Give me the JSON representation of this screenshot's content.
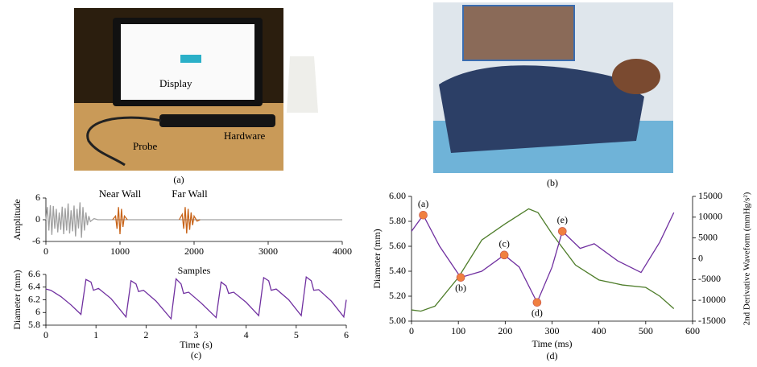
{
  "photos": [
    {
      "labels": [
        "Display",
        "Probe",
        "Hardware"
      ],
      "caption": "(a)"
    },
    {
      "caption": "(b)"
    }
  ],
  "chart_data": [
    {
      "type": "line",
      "xlabel": "Samples",
      "ylabel": "Amplitude",
      "xlim": [
        0,
        4000
      ],
      "xticks": [
        0,
        1000,
        2000,
        3000,
        4000
      ],
      "ylim": [
        -6,
        6
      ],
      "yticks": [
        -6,
        0,
        6
      ],
      "annotations": [
        "Near Wall",
        "Far Wall"
      ],
      "series": [
        {
          "color": "#a0a0a0",
          "x": [
            0,
            20,
            40,
            60,
            80,
            100,
            120,
            140,
            160,
            180,
            200,
            220,
            240,
            260,
            280,
            300,
            320,
            340,
            360,
            380,
            400,
            420,
            440,
            460,
            480,
            500,
            520,
            540,
            560,
            580,
            600,
            650,
            700,
            4000
          ],
          "values": [
            0,
            3.5,
            -3,
            4,
            -4.2,
            3.8,
            -2.5,
            3,
            -3.5,
            2,
            -2.8,
            3.6,
            -4,
            3.2,
            -3,
            4.5,
            -3.8,
            2.6,
            -3.2,
            3.9,
            -4.6,
            3,
            -2.4,
            4.8,
            -5,
            3.5,
            -3,
            2,
            -1.5,
            1,
            -0.5,
            0.3,
            0,
            0
          ]
        },
        {
          "color": "#c8651b",
          "x": [
            900,
            940,
            960,
            980,
            1000,
            1020,
            1040,
            1060,
            1100
          ],
          "values": [
            0,
            1,
            -2.5,
            3.5,
            -4,
            3,
            -2,
            1,
            0
          ]
        },
        {
          "color": "#c8651b",
          "x": [
            1800,
            1840,
            1860,
            1880,
            1900,
            1920,
            1940,
            1960,
            1980,
            2000,
            2040,
            2080
          ],
          "values": [
            0,
            1.5,
            -2.5,
            3.5,
            -3.8,
            3,
            -2.8,
            2,
            -1.5,
            1,
            -0.4,
            0
          ]
        }
      ]
    },
    {
      "type": "line",
      "xlabel": "Time (s)",
      "ylabel": "Diameter (mm)",
      "caption": "(c)",
      "xlim": [
        0,
        6
      ],
      "xticks": [
        0,
        1,
        2,
        3,
        4,
        5,
        6
      ],
      "ylim": [
        5.8,
        6.6
      ],
      "yticks": [
        5.8,
        6,
        6.2,
        6.4,
        6.6
      ],
      "series": [
        {
          "color": "#7030a0",
          "x": [
            0,
            0.1,
            0.3,
            0.5,
            0.7,
            0.8,
            0.9,
            0.95,
            1.05,
            1.3,
            1.6,
            1.7,
            1.8,
            1.85,
            1.95,
            2.2,
            2.5,
            2.6,
            2.7,
            2.75,
            2.85,
            3.1,
            3.4,
            3.5,
            3.6,
            3.65,
            3.75,
            4.0,
            4.25,
            4.35,
            4.45,
            4.5,
            4.6,
            4.85,
            5.1,
            5.2,
            5.3,
            5.35,
            5.45,
            5.7,
            5.95,
            6.0
          ],
          "values": [
            6.37,
            6.35,
            6.25,
            6.12,
            5.97,
            6.52,
            6.48,
            6.35,
            6.38,
            6.22,
            5.93,
            6.5,
            6.45,
            6.33,
            6.35,
            6.18,
            5.9,
            6.53,
            6.45,
            6.3,
            6.32,
            6.15,
            5.92,
            6.48,
            6.42,
            6.3,
            6.32,
            6.16,
            5.95,
            6.55,
            6.5,
            6.35,
            6.37,
            6.2,
            5.95,
            6.56,
            6.5,
            6.35,
            6.36,
            6.18,
            5.93,
            6.2
          ]
        }
      ]
    },
    {
      "type": "line",
      "xlabel": "Time (ms)",
      "ylabel": "Diameter (mm)",
      "y2label": "2nd Derivative Waveform (mmHg/s²)",
      "caption": "(d)",
      "xlim": [
        0,
        600
      ],
      "xticks": [
        0,
        100,
        200,
        300,
        400,
        500,
        600
      ],
      "ylim": [
        5.0,
        6.0
      ],
      "yticks": [
        {
          "value": 5.0,
          "label": "5.00"
        },
        {
          "value": 5.2,
          "label": "5.20"
        },
        {
          "value": 5.4,
          "label": "5.40"
        },
        {
          "value": 5.6,
          "label": "5.60"
        },
        {
          "value": 5.8,
          "label": "5.80"
        },
        {
          "value": 6.0,
          "label": "6.00"
        }
      ],
      "y2lim": [
        -15000,
        15000
      ],
      "y2ticks": [
        -15000,
        -10000,
        -5000,
        0,
        5000,
        10000,
        15000
      ],
      "series": [
        {
          "color": "#4e7d2a",
          "x": [
            0,
            20,
            50,
            100,
            150,
            200,
            250,
            270,
            300,
            350,
            400,
            450,
            500,
            530,
            560
          ],
          "values": [
            5.09,
            5.08,
            5.12,
            5.35,
            5.65,
            5.78,
            5.9,
            5.87,
            5.7,
            5.45,
            5.33,
            5.29,
            5.27,
            5.2,
            5.1
          ]
        },
        {
          "color": "#7030a0",
          "axis": "y2",
          "x": [
            0,
            25,
            60,
            105,
            150,
            198,
            230,
            268,
            300,
            322,
            360,
            390,
            440,
            490,
            530,
            560
          ],
          "values": [
            6600,
            10500,
            3000,
            -4500,
            -3000,
            900,
            -2000,
            -10500,
            -2000,
            6600,
            2500,
            3600,
            -500,
            -3300,
            4000,
            11100
          ]
        }
      ],
      "markers": {
        "color": "#f08040",
        "axis": "y2",
        "x": [
          25,
          105,
          198,
          268,
          322
        ],
        "values": [
          10500,
          -4500,
          900,
          -10500,
          6600
        ],
        "labels": [
          "(a)",
          "(b)",
          "(c)",
          "(d)",
          "(e)"
        ]
      }
    }
  ]
}
